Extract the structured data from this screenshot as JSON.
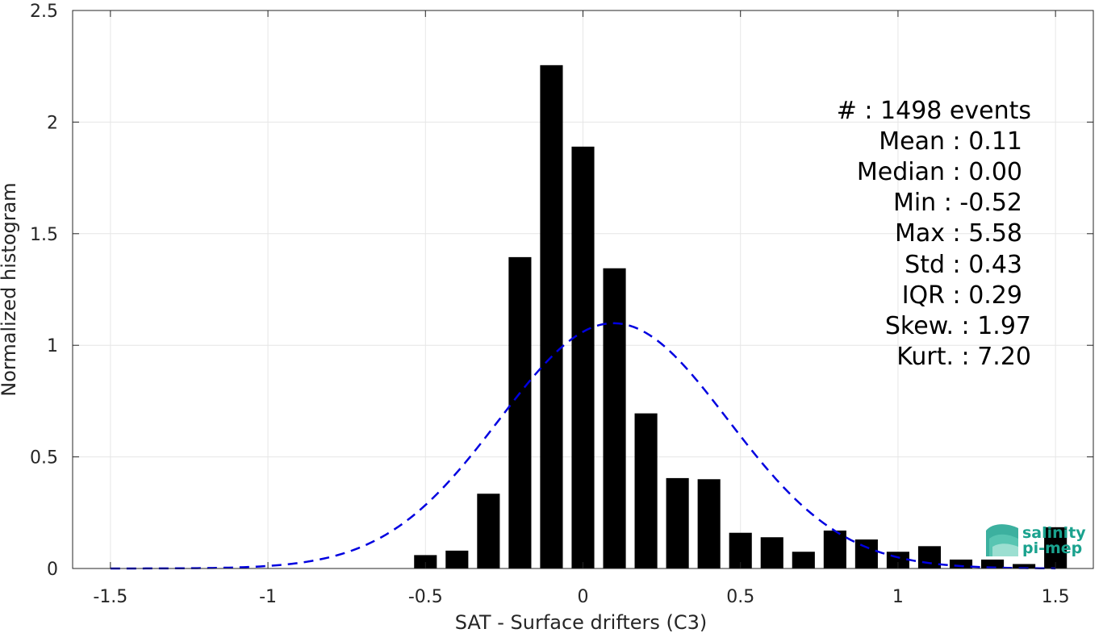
{
  "chart_data": {
    "type": "bar",
    "xlabel": "SAT - Surface drifters (C3)",
    "ylabel": "Normalized histogram",
    "xlim": [
      -1.62,
      1.62
    ],
    "ylim": [
      0,
      2.5
    ],
    "xticks": [
      -1.5,
      -1,
      -0.5,
      0,
      0.5,
      1,
      1.5
    ],
    "xtick_labels": [
      "-1.5",
      "-1",
      "-0.5",
      "0",
      "0.5",
      "1",
      "1.5"
    ],
    "yticks": [
      0,
      0.5,
      1,
      1.5,
      2,
      2.5
    ],
    "ytick_labels": [
      "0",
      "0.5",
      "1",
      "1.5",
      "2",
      "2.5"
    ],
    "grid": true,
    "bar_color": "#000000",
    "bin_width": 0.1,
    "bins": [
      {
        "x": -0.5,
        "value": 0.06
      },
      {
        "x": -0.4,
        "value": 0.08
      },
      {
        "x": -0.3,
        "value": 0.335
      },
      {
        "x": -0.2,
        "value": 1.395
      },
      {
        "x": -0.1,
        "value": 2.255
      },
      {
        "x": 0.0,
        "value": 1.89
      },
      {
        "x": 0.1,
        "value": 1.345
      },
      {
        "x": 0.2,
        "value": 0.695
      },
      {
        "x": 0.3,
        "value": 0.405
      },
      {
        "x": 0.4,
        "value": 0.4
      },
      {
        "x": 0.5,
        "value": 0.16
      },
      {
        "x": 0.6,
        "value": 0.14
      },
      {
        "x": 0.7,
        "value": 0.075
      },
      {
        "x": 0.8,
        "value": 0.17
      },
      {
        "x": 0.9,
        "value": 0.13
      },
      {
        "x": 1.0,
        "value": 0.075
      },
      {
        "x": 1.1,
        "value": 0.1
      },
      {
        "x": 1.2,
        "value": 0.04
      },
      {
        "x": 1.3,
        "value": 0.04
      },
      {
        "x": 1.4,
        "value": 0.02
      },
      {
        "x": 1.5,
        "value": 0.185
      }
    ],
    "fit_curve": {
      "kind": "gaussian",
      "mean": 0.097,
      "std": 0.363,
      "x_range": [
        -1.5,
        1.5
      ],
      "color": "#0000e0",
      "style": "dashed"
    },
    "stats_lines": [
      "#  : 1498 events",
      "Mean : 0.11",
      "Median : 0.00",
      "Min : -0.52",
      "Max : 5.58",
      "Std : 0.43",
      "IQR : 0.29",
      "Skew. : 1.97",
      "Kurt. : 7.20"
    ]
  },
  "logo": {
    "line1": "salinity",
    "line2": "pi-mep",
    "color": "#1aa28e"
  }
}
